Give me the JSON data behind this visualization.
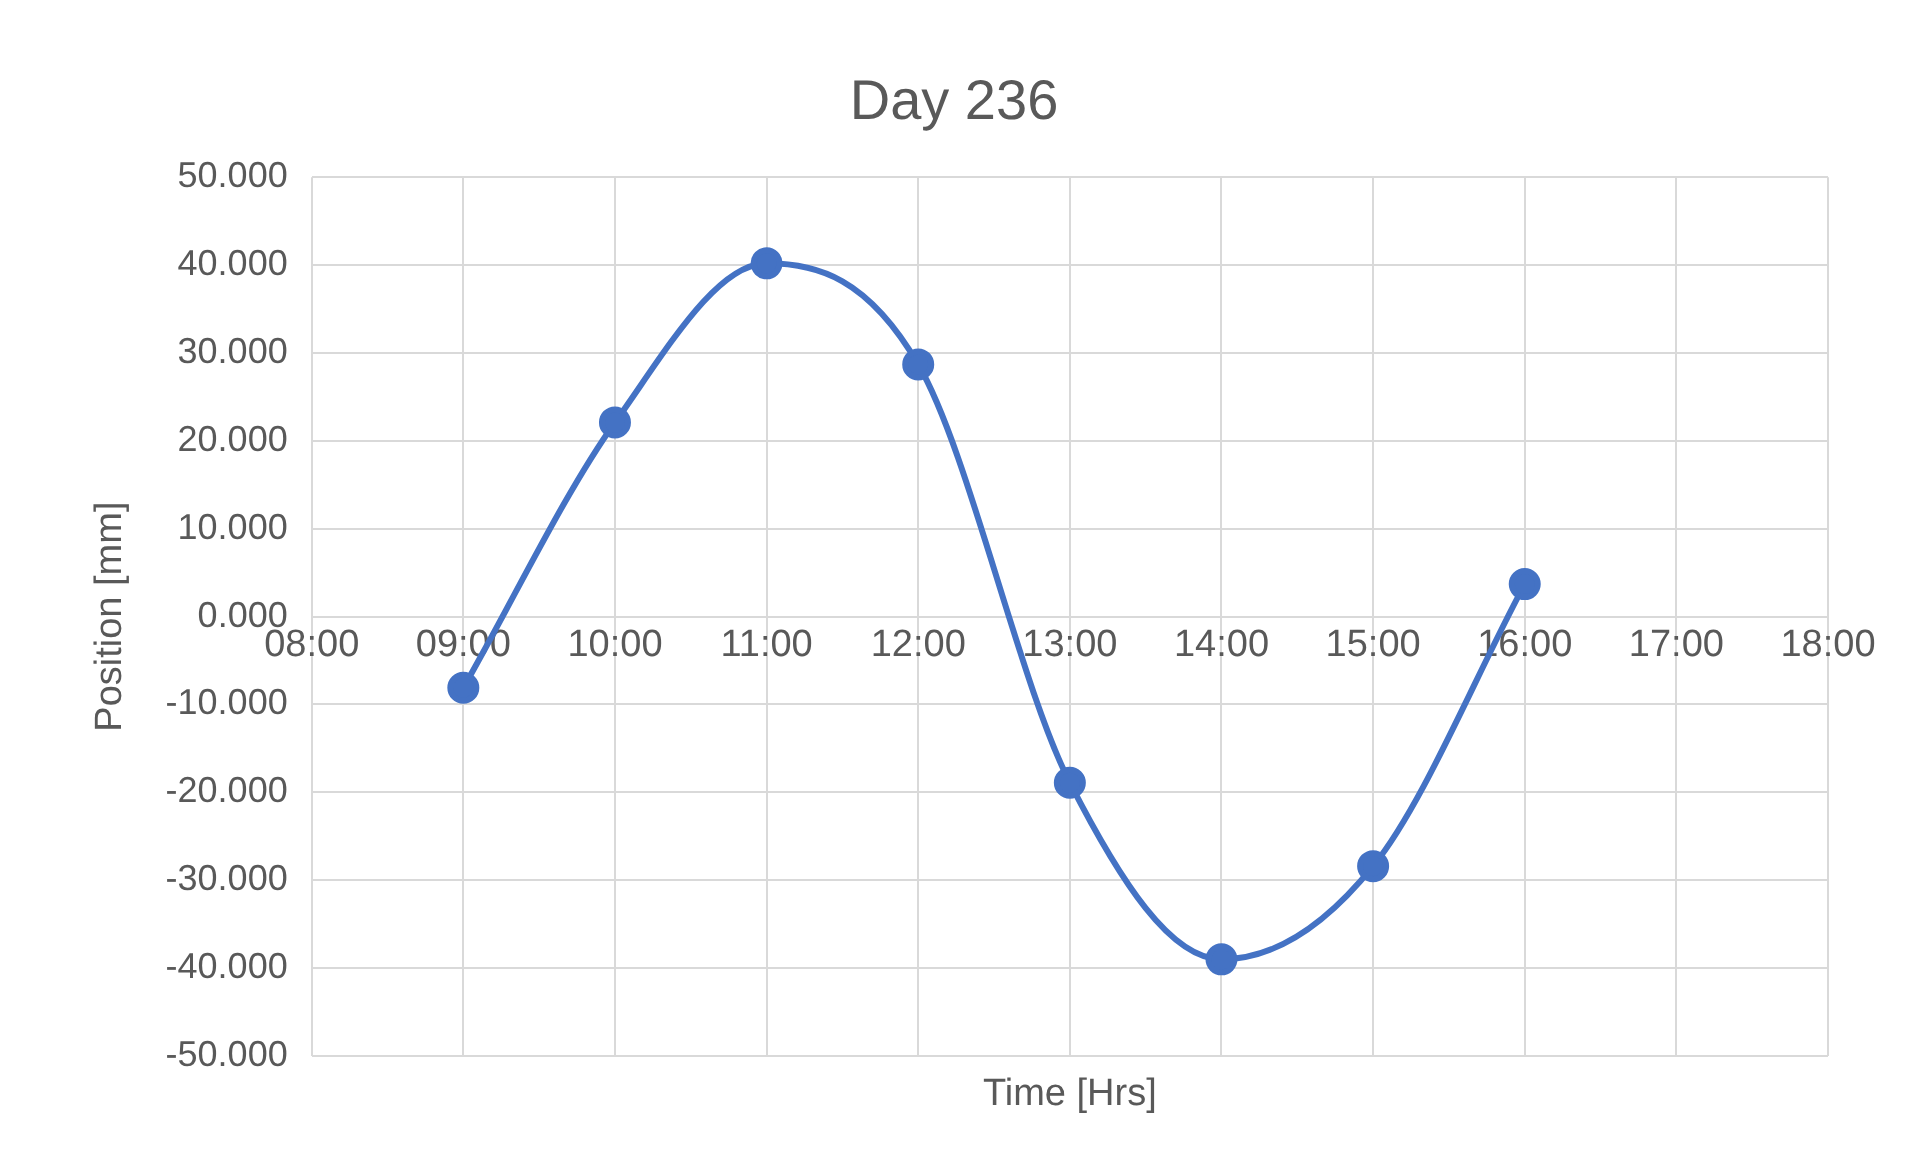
{
  "chart_data": {
    "type": "line",
    "title": "Day 236",
    "xlabel": "Time [Hrs]",
    "ylabel": "Position [mm]",
    "x": [
      9,
      10,
      11,
      12,
      13,
      14,
      15,
      16
    ],
    "series": [
      {
        "color": "#4472c4",
        "values": [
          -8.1,
          22.1,
          40.2,
          28.7,
          -18.9,
          -39.0,
          -28.4,
          3.7
        ]
      }
    ],
    "xlim": [
      8,
      18
    ],
    "xticks": [
      {
        "value": 8,
        "label": "08:00"
      },
      {
        "value": 9,
        "label": "09:00"
      },
      {
        "value": 10,
        "label": "10:00"
      },
      {
        "value": 11,
        "label": "11:00"
      },
      {
        "value": 12,
        "label": "12:00"
      },
      {
        "value": 13,
        "label": "13:00"
      },
      {
        "value": 14,
        "label": "14:00"
      },
      {
        "value": 15,
        "label": "15:00"
      },
      {
        "value": 16,
        "label": "16:00"
      },
      {
        "value": 17,
        "label": "17:00"
      },
      {
        "value": 18,
        "label": "18:00"
      }
    ],
    "ylim": [
      -50,
      50
    ],
    "yticks": [
      {
        "value": -50,
        "label": "-50.000"
      },
      {
        "value": -40,
        "label": "-40.000"
      },
      {
        "value": -30,
        "label": "-30.000"
      },
      {
        "value": -20,
        "label": "-20.000"
      },
      {
        "value": -10,
        "label": "-10.000"
      },
      {
        "value": 0,
        "label": "0.000"
      },
      {
        "value": 10,
        "label": "10.000"
      },
      {
        "value": 20,
        "label": "20.000"
      },
      {
        "value": 30,
        "label": "30.000"
      },
      {
        "value": 40,
        "label": "40.000"
      },
      {
        "value": 50,
        "label": "50.000"
      }
    ],
    "grid": true,
    "marker": "circle",
    "line_style": "solid",
    "legend": false
  }
}
